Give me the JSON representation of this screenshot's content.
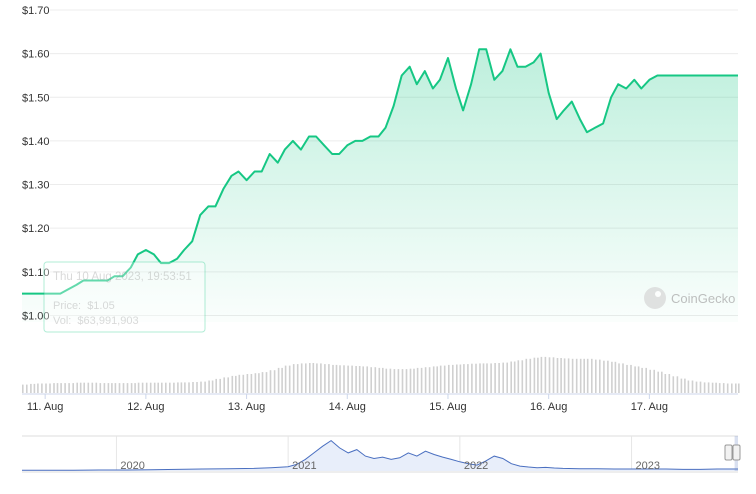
{
  "chart_data": {
    "type": "area",
    "currency_prefix": "$",
    "y_ticks": [
      "$1.70",
      "$1.60",
      "$1.50",
      "$1.40",
      "$1.30",
      "$1.20",
      "$1.10",
      "$1.00"
    ],
    "ylim": [
      0.985,
      1.7
    ],
    "x_ticks": [
      "11. Aug",
      "12. Aug",
      "13. Aug",
      "14. Aug",
      "15. Aug",
      "16. Aug",
      "17. Aug"
    ],
    "xlim": [
      10.77,
      17.88
    ],
    "line_color": "#16c784",
    "area_color": "#16c784",
    "volume_color": "#d0d0d0",
    "grid": "horizontal",
    "series": [
      {
        "x": [
          10.77,
          10.85,
          10.92,
          11.0,
          11.08,
          11.15,
          11.23,
          11.31,
          11.38,
          11.46,
          11.54,
          11.62,
          11.69,
          11.77,
          11.85,
          11.92,
          12.0,
          12.08,
          12.15,
          12.23,
          12.31,
          12.38,
          12.46,
          12.54,
          12.62,
          12.69,
          12.77,
          12.85,
          12.92,
          13.0,
          13.08,
          13.15,
          13.23,
          13.31,
          13.38,
          13.46,
          13.54,
          13.62,
          13.69,
          13.77,
          13.85,
          13.92,
          14.0,
          14.08,
          14.15,
          14.23,
          14.31,
          14.38,
          14.46,
          14.54,
          14.62,
          14.69,
          14.77,
          14.85,
          14.92,
          15.0,
          15.08,
          15.15,
          15.23,
          15.31,
          15.38,
          15.46,
          15.54,
          15.62,
          15.69,
          15.77,
          15.85,
          15.92,
          16.0,
          16.08,
          16.15,
          16.23,
          16.31,
          16.38,
          16.46,
          16.54,
          16.62,
          16.69,
          16.77,
          16.85,
          16.92,
          17.0,
          17.08,
          17.15,
          17.23,
          17.31,
          17.38,
          17.46,
          17.54,
          17.62,
          17.69,
          17.77,
          17.85,
          17.88
        ],
        "y": [
          1.05,
          1.05,
          1.05,
          1.05,
          1.05,
          1.05,
          1.06,
          1.07,
          1.08,
          1.08,
          1.08,
          1.08,
          1.09,
          1.09,
          1.11,
          1.14,
          1.15,
          1.14,
          1.12,
          1.12,
          1.13,
          1.15,
          1.17,
          1.23,
          1.25,
          1.25,
          1.29,
          1.32,
          1.33,
          1.31,
          1.33,
          1.33,
          1.37,
          1.35,
          1.38,
          1.4,
          1.38,
          1.41,
          1.41,
          1.39,
          1.37,
          1.37,
          1.39,
          1.4,
          1.4,
          1.41,
          1.41,
          1.43,
          1.48,
          1.55,
          1.57,
          1.53,
          1.56,
          1.52,
          1.54,
          1.59,
          1.52,
          1.47,
          1.53,
          1.61,
          1.61,
          1.54,
          1.56,
          1.61,
          1.57,
          1.57,
          1.58,
          1.6,
          1.51,
          1.45,
          1.47,
          1.49,
          1.45,
          1.42,
          1.43,
          1.44,
          1.5,
          1.53,
          1.52,
          1.54,
          1.52,
          1.54,
          1.55,
          1.55,
          1.55,
          1.55,
          1.55,
          1.55,
          1.55,
          1.55,
          1.55,
          1.55,
          1.55,
          1.55
        ]
      }
    ],
    "volume": {
      "x": [
        10.77,
        10.85,
        10.92,
        11.0,
        11.08,
        11.15,
        11.23,
        11.31,
        11.38,
        11.46,
        11.54,
        11.62,
        11.69,
        11.77,
        11.85,
        11.92,
        12.0,
        12.08,
        12.15,
        12.23,
        12.31,
        12.38,
        12.46,
        12.54,
        12.62,
        12.69,
        12.77,
        12.85,
        12.92,
        13.0,
        13.08,
        13.15,
        13.23,
        13.31,
        13.38,
        13.46,
        13.54,
        13.62,
        13.69,
        13.77,
        13.85,
        13.92,
        14.0,
        14.08,
        14.15,
        14.23,
        14.31,
        14.38,
        14.46,
        14.54,
        14.62,
        14.69,
        14.77,
        14.85,
        14.92,
        15.0,
        15.08,
        15.15,
        15.23,
        15.31,
        15.38,
        15.46,
        15.54,
        15.62,
        15.69,
        15.77,
        15.85,
        15.92,
        16.0,
        16.08,
        16.15,
        16.23,
        16.31,
        16.38,
        16.46,
        16.54,
        16.62,
        16.69,
        16.77,
        16.85,
        16.92,
        17.0,
        17.08,
        17.15,
        17.23,
        17.31,
        17.38,
        17.46,
        17.54,
        17.62,
        17.69,
        17.77,
        17.85
      ],
      "y": [
        0.22,
        0.24,
        0.25,
        0.25,
        0.26,
        0.26,
        0.26,
        0.27,
        0.27,
        0.27,
        0.26,
        0.26,
        0.26,
        0.26,
        0.26,
        0.27,
        0.27,
        0.27,
        0.27,
        0.27,
        0.28,
        0.28,
        0.29,
        0.3,
        0.33,
        0.37,
        0.41,
        0.45,
        0.48,
        0.5,
        0.52,
        0.55,
        0.6,
        0.66,
        0.72,
        0.76,
        0.78,
        0.79,
        0.78,
        0.76,
        0.74,
        0.73,
        0.72,
        0.71,
        0.7,
        0.68,
        0.66,
        0.64,
        0.63,
        0.63,
        0.64,
        0.66,
        0.68,
        0.7,
        0.72,
        0.74,
        0.75,
        0.76,
        0.77,
        0.78,
        0.78,
        0.79,
        0.8,
        0.83,
        0.86,
        0.9,
        0.93,
        0.95,
        0.94,
        0.92,
        0.91,
        0.9,
        0.9,
        0.9,
        0.88,
        0.85,
        0.82,
        0.78,
        0.74,
        0.7,
        0.66,
        0.61,
        0.56,
        0.5,
        0.44,
        0.38,
        0.33,
        0.3,
        0.28,
        0.27,
        0.26,
        0.25,
        0.25
      ]
    },
    "navigator": {
      "labels": [
        "2020",
        "2021",
        "2022",
        "2023"
      ],
      "x": [
        2019.45,
        2019.6,
        2019.75,
        2019.9,
        2020.05,
        2020.2,
        2020.35,
        2020.5,
        2020.65,
        2020.8,
        2020.9,
        2021.0,
        2021.05,
        2021.1,
        2021.15,
        2021.2,
        2021.25,
        2021.3,
        2021.35,
        2021.4,
        2021.45,
        2021.5,
        2021.55,
        2021.6,
        2021.65,
        2021.7,
        2021.75,
        2021.8,
        2021.85,
        2021.9,
        2021.95,
        2022.0,
        2022.05,
        2022.1,
        2022.15,
        2022.2,
        2022.25,
        2022.3,
        2022.35,
        2022.4,
        2022.45,
        2022.5,
        2022.55,
        2022.6,
        2022.7,
        2022.8,
        2022.9,
        2023.0,
        2023.1,
        2023.2,
        2023.3,
        2023.4,
        2023.5,
        2023.62
      ],
      "y": [
        0.02,
        0.02,
        0.02,
        0.03,
        0.03,
        0.04,
        0.05,
        0.06,
        0.07,
        0.08,
        0.1,
        0.13,
        0.2,
        0.35,
        0.55,
        0.75,
        0.92,
        0.7,
        0.55,
        0.65,
        0.45,
        0.38,
        0.42,
        0.35,
        0.4,
        0.55,
        0.45,
        0.6,
        0.5,
        0.42,
        0.35,
        0.28,
        0.22,
        0.18,
        0.3,
        0.45,
        0.38,
        0.22,
        0.15,
        0.12,
        0.1,
        0.11,
        0.09,
        0.08,
        0.07,
        0.07,
        0.06,
        0.06,
        0.06,
        0.06,
        0.05,
        0.05,
        0.06,
        0.06
      ],
      "xlim": [
        2019.45,
        2023.62
      ],
      "selection_start": 2023.6
    }
  },
  "tooltip": {
    "title": "Thu 10 Aug 2023, 19:53:51",
    "price_label": "Price:",
    "price_value": "$1.05",
    "volume_label": "Vol:",
    "volume_value": "$63,991,903"
  },
  "watermark": {
    "text": "CoinGecko",
    "icon": "coingecko-logo-icon"
  }
}
